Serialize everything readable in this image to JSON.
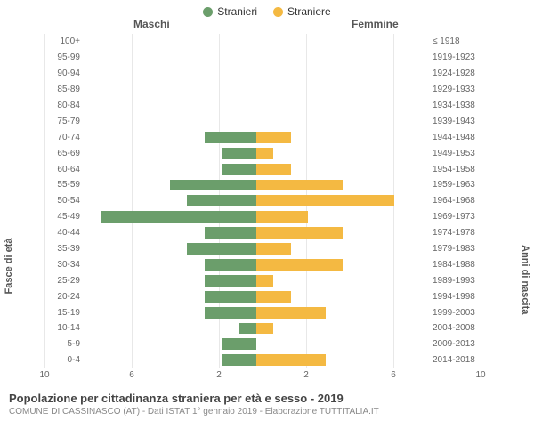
{
  "chart": {
    "type": "population-pyramid",
    "legend": {
      "male": "Stranieri",
      "female": "Straniere"
    },
    "colors": {
      "male": "#6b9e6b",
      "female": "#f4b942",
      "background": "#ffffff",
      "grid": "#e8e8e8",
      "center_line": "#555555",
      "text": "#666666"
    },
    "headers": {
      "left": "Maschi",
      "right": "Femmine"
    },
    "y_axis_left_label": "Fasce di età",
    "y_axis_right_label": "Anni di nascita",
    "x_axis": {
      "max": 10,
      "ticks": [
        10,
        6,
        2,
        2,
        6,
        10
      ]
    },
    "typography": {
      "legend_fontsize": 12,
      "header_fontsize": 12,
      "tick_fontsize": 10,
      "axis_label_fontsize": 11,
      "footer_title_fontsize": 13,
      "footer_sub_fontsize": 10
    },
    "rows": [
      {
        "age": "100+",
        "year": "≤ 1918",
        "m": 0,
        "f": 0
      },
      {
        "age": "95-99",
        "year": "1919-1923",
        "m": 0,
        "f": 0
      },
      {
        "age": "90-94",
        "year": "1924-1928",
        "m": 0,
        "f": 0
      },
      {
        "age": "85-89",
        "year": "1929-1933",
        "m": 0,
        "f": 0
      },
      {
        "age": "80-84",
        "year": "1934-1938",
        "m": 0,
        "f": 0
      },
      {
        "age": "75-79",
        "year": "1939-1943",
        "m": 0,
        "f": 0
      },
      {
        "age": "70-74",
        "year": "1944-1948",
        "m": 3,
        "f": 2
      },
      {
        "age": "65-69",
        "year": "1949-1953",
        "m": 2,
        "f": 1
      },
      {
        "age": "60-64",
        "year": "1954-1958",
        "m": 2,
        "f": 2
      },
      {
        "age": "55-59",
        "year": "1959-1963",
        "m": 5,
        "f": 5
      },
      {
        "age": "50-54",
        "year": "1964-1968",
        "m": 4,
        "f": 8
      },
      {
        "age": "45-49",
        "year": "1969-1973",
        "m": 9,
        "f": 3
      },
      {
        "age": "40-44",
        "year": "1974-1978",
        "m": 3,
        "f": 5
      },
      {
        "age": "35-39",
        "year": "1979-1983",
        "m": 4,
        "f": 2
      },
      {
        "age": "30-34",
        "year": "1984-1988",
        "m": 3,
        "f": 5
      },
      {
        "age": "25-29",
        "year": "1989-1993",
        "m": 3,
        "f": 1
      },
      {
        "age": "20-24",
        "year": "1994-1998",
        "m": 3,
        "f": 2
      },
      {
        "age": "15-19",
        "year": "1999-2003",
        "m": 3,
        "f": 4
      },
      {
        "age": "10-14",
        "year": "2004-2008",
        "m": 1,
        "f": 1
      },
      {
        "age": "5-9",
        "year": "2009-2013",
        "m": 2,
        "f": 0
      },
      {
        "age": "0-4",
        "year": "2014-2018",
        "m": 2,
        "f": 4
      }
    ]
  },
  "footer": {
    "title": "Popolazione per cittadinanza straniera per età e sesso - 2019",
    "subtitle": "COMUNE DI CASSINASCO (AT) - Dati ISTAT 1° gennaio 2019 - Elaborazione TUTTITALIA.IT"
  }
}
